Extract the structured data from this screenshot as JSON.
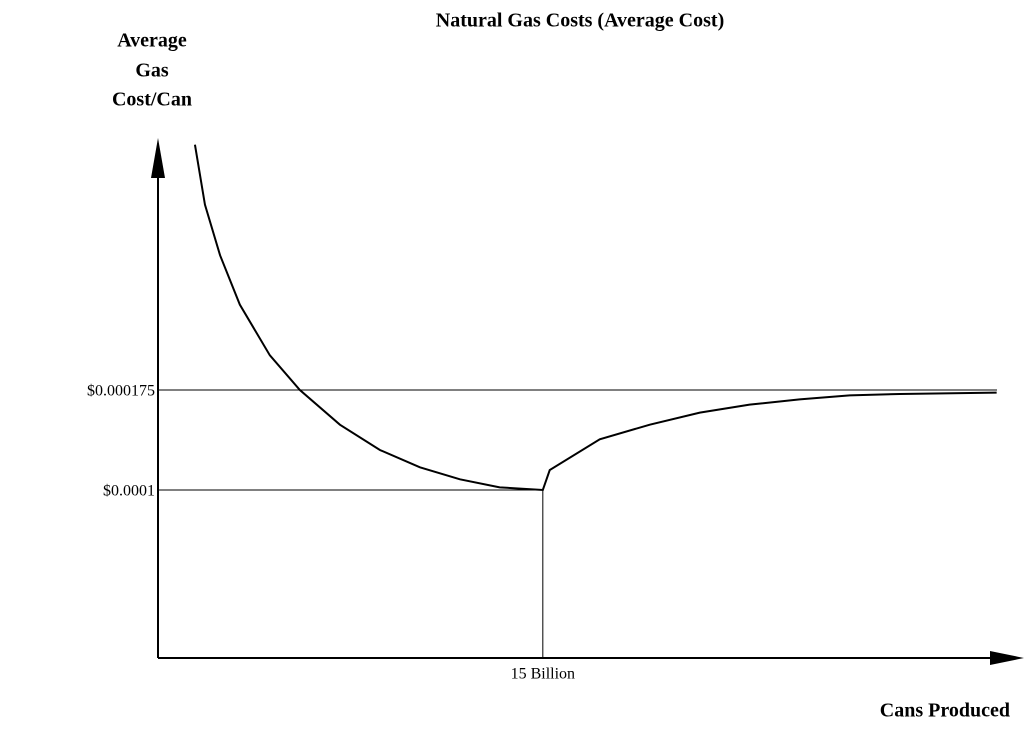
{
  "chart_data": {
    "type": "line",
    "title": "Natural Gas Costs (Average Cost)",
    "ylabel": [
      "Average",
      "Gas",
      "Cost/Can"
    ],
    "xlabel": "Cans Produced",
    "x": [
      1.44,
      1.83,
      2.42,
      3.19,
      4.36,
      5.53,
      7.09,
      8.65,
      10.21,
      11.77,
      13.32,
      15,
      15.27,
      17.22,
      19.17,
      21.12,
      23.06,
      25.01,
      26.96,
      28.91,
      32.69
    ],
    "series": [
      {
        "color": "#000000",
        "values": [
          0.000359,
          0.000314,
          0.000276,
          0.000239,
          0.000201,
          0.000175,
          0.000149,
          0.00013,
          0.000117,
          0.000108,
          0.000102,
          0.0001,
          0.000115,
          0.000138,
          0.000149,
          0.000158,
          0.000164,
          0.000168,
          0.000171,
          0.000172,
          0.000173
        ]
      }
    ],
    "xlim": [
      0,
      33.6
    ],
    "xticks": [
      {
        "value": 15,
        "label": "15 Billion"
      }
    ],
    "ylim": [
      -2.6e-05,
      0.0003625
    ],
    "yticks": [
      {
        "value": 0.0001,
        "label": "$0.0001"
      },
      {
        "value": 0.000175,
        "label": "$0.000175"
      }
    ]
  }
}
